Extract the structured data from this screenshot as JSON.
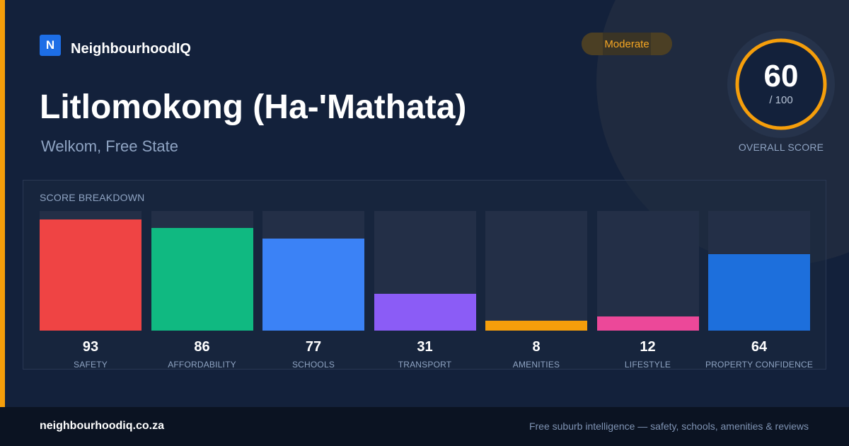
{
  "brand": {
    "logo_letter": "N",
    "name": "NeighbourhoodIQ"
  },
  "badge": {
    "label": "Moderate"
  },
  "suburb": {
    "name": "Litlomokong (Ha-'Mathata)",
    "location": "Welkom, Free State"
  },
  "overall": {
    "score": "60",
    "max": "/ 100",
    "label": "OVERALL SCORE",
    "score_value": 60,
    "max_value": 100
  },
  "breakdown": {
    "title": "SCORE BREAKDOWN"
  },
  "chart_data": {
    "type": "bar",
    "title": "SCORE BREAKDOWN",
    "categories": [
      "SAFETY",
      "AFFORDABILITY",
      "SCHOOLS",
      "TRANSPORT",
      "AMENITIES",
      "LIFESTYLE",
      "PROPERTY CONFIDENCE"
    ],
    "values": [
      93,
      86,
      77,
      31,
      8,
      12,
      64
    ],
    "colors": [
      "#ef4444",
      "#10b981",
      "#3b82f6",
      "#8b5cf6",
      "#f59e0b",
      "#ec4899",
      "#1d6fdc"
    ],
    "ylim": [
      0,
      100
    ],
    "grid": false
  },
  "colors": {
    "accent": "#f59e0b",
    "ring": "#f59e0b",
    "background": "#13213b"
  },
  "footer": {
    "domain": "neighbourhoodiq.co.za",
    "tagline": "Free suburb intelligence — safety, schools, amenities & reviews"
  }
}
